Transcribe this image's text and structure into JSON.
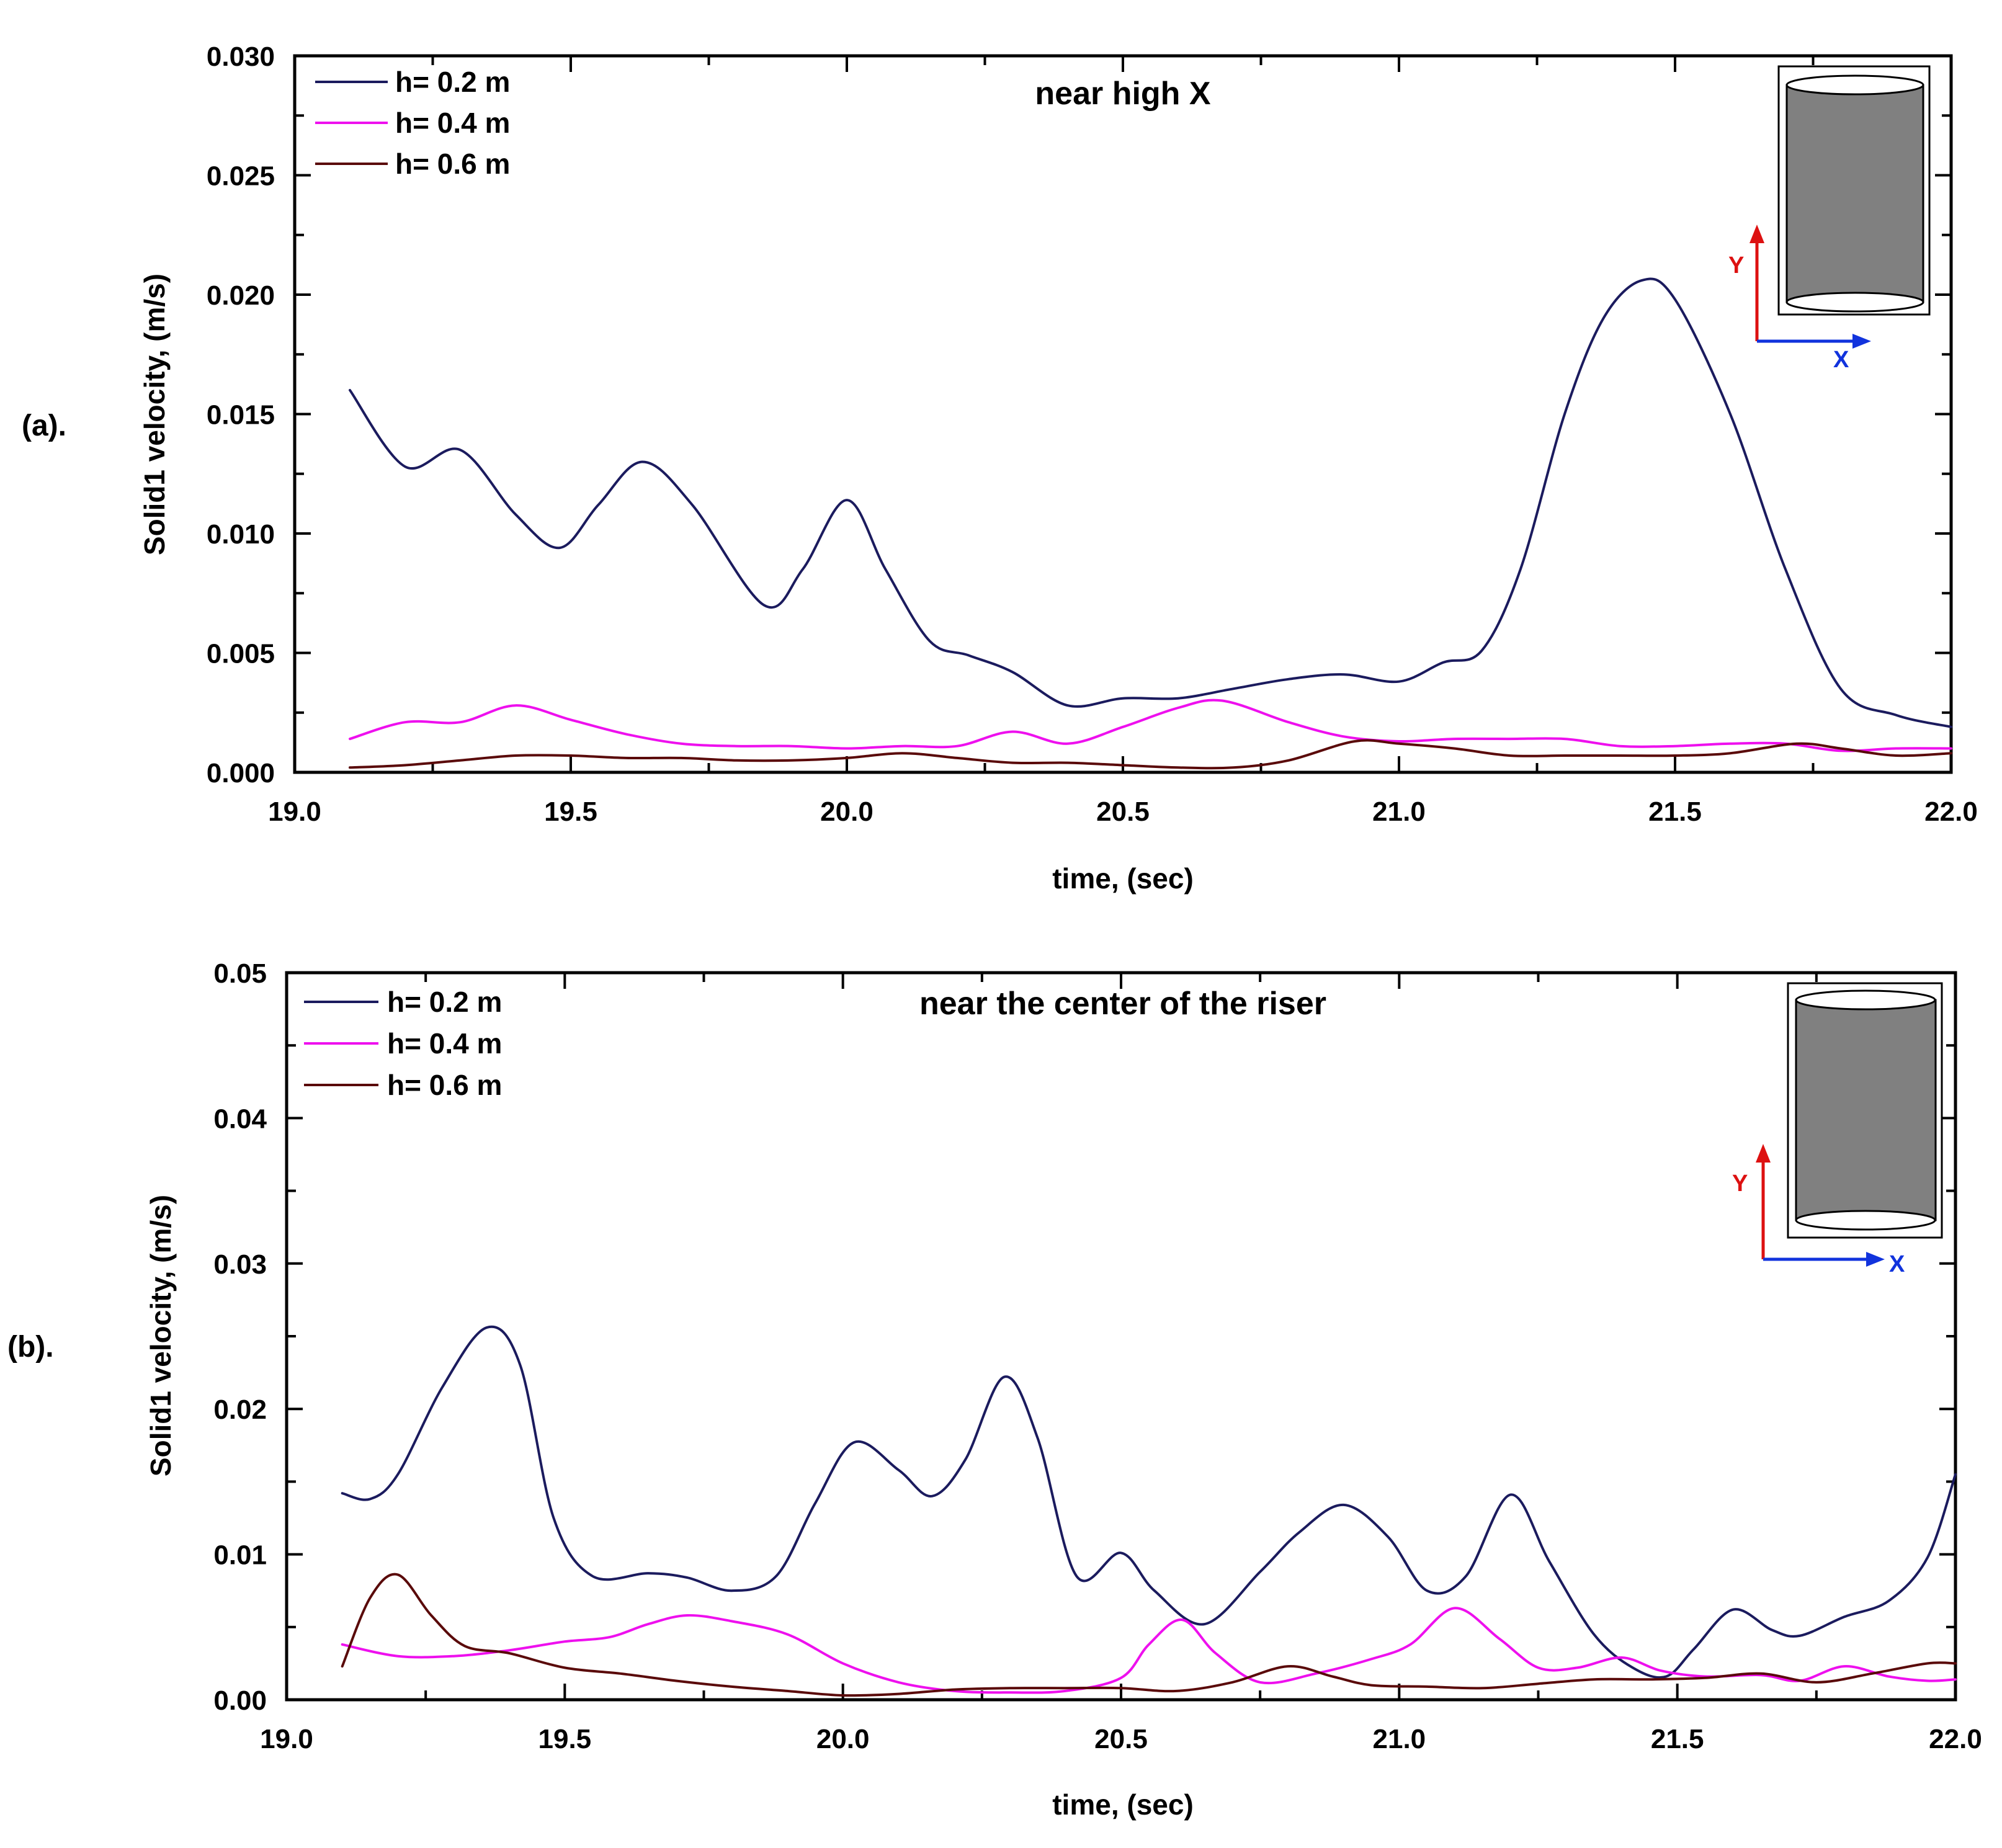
{
  "figure": {
    "colors": {
      "h02": "#1b1b5e",
      "h04": "#ee10ee",
      "h06": "#5a0a0a",
      "axis": "#000000",
      "inset_fill": "#808080",
      "inset_y_axis": "#dd1111",
      "inset_x_axis": "#1133dd"
    },
    "icons": [
      "cylinder-icon",
      "y-axis-arrow-icon",
      "x-axis-arrow-icon"
    ]
  },
  "chart_data": [
    {
      "type": "line",
      "panel_label": "(a).",
      "title": "near high X",
      "xlabel": "time, (sec)",
      "ylabel": "Solid1 velocity, (m/s)",
      "xlim": [
        19.0,
        22.0
      ],
      "ylim": [
        0.0,
        0.03
      ],
      "xticks": [
        19.0,
        19.5,
        20.0,
        20.5,
        21.0,
        21.5,
        22.0
      ],
      "xtick_labels": [
        "19.0",
        "19.5",
        "20.0",
        "20.5",
        "21.0",
        "21.5",
        "22.0"
      ],
      "yticks": [
        0.0,
        0.005,
        0.01,
        0.015,
        0.02,
        0.025,
        0.03
      ],
      "ytick_labels": [
        "0.000",
        "0.005",
        "0.010",
        "0.015",
        "0.020",
        "0.025",
        "0.030"
      ],
      "legend_position": "top-left",
      "inset": {
        "y_label": "Y",
        "x_label": "X"
      },
      "series": [
        {
          "name": "h= 0.2 m",
          "color": "#1b1b5e",
          "x": [
            19.1,
            19.2,
            19.3,
            19.4,
            19.48,
            19.55,
            19.63,
            19.72,
            19.85,
            19.92,
            20.0,
            20.07,
            20.15,
            20.22,
            20.3,
            20.4,
            20.5,
            20.6,
            20.7,
            20.8,
            20.9,
            21.0,
            21.08,
            21.15,
            21.22,
            21.3,
            21.37,
            21.44,
            21.5,
            21.6,
            21.7,
            21.8,
            21.9,
            22.0
          ],
          "values": [
            0.016,
            0.0128,
            0.0135,
            0.0108,
            0.0094,
            0.0112,
            0.013,
            0.0112,
            0.007,
            0.0085,
            0.0114,
            0.0085,
            0.0055,
            0.0049,
            0.0042,
            0.0028,
            0.0031,
            0.0031,
            0.0035,
            0.0039,
            0.0041,
            0.0038,
            0.0046,
            0.0051,
            0.0085,
            0.015,
            0.019,
            0.0206,
            0.0198,
            0.015,
            0.0085,
            0.0035,
            0.0024,
            0.0019
          ]
        },
        {
          "name": "h= 0.4 m",
          "color": "#ee10ee",
          "x": [
            19.1,
            19.2,
            19.3,
            19.4,
            19.5,
            19.6,
            19.7,
            19.8,
            19.9,
            20.0,
            20.1,
            20.2,
            20.3,
            20.4,
            20.5,
            20.6,
            20.68,
            20.8,
            20.9,
            21.0,
            21.1,
            21.2,
            21.3,
            21.4,
            21.5,
            21.6,
            21.7,
            21.8,
            21.9,
            22.0
          ],
          "values": [
            0.0014,
            0.0021,
            0.0021,
            0.0028,
            0.0022,
            0.0016,
            0.0012,
            0.0011,
            0.0011,
            0.001,
            0.0011,
            0.0011,
            0.0017,
            0.0012,
            0.0019,
            0.0027,
            0.003,
            0.0021,
            0.0015,
            0.0013,
            0.0014,
            0.0014,
            0.0014,
            0.0011,
            0.0011,
            0.0012,
            0.0012,
            0.0009,
            0.001,
            0.001
          ]
        },
        {
          "name": "h= 0.6 m",
          "color": "#5a0a0a",
          "x": [
            19.1,
            19.2,
            19.3,
            19.4,
            19.5,
            19.6,
            19.7,
            19.8,
            19.9,
            20.0,
            20.1,
            20.2,
            20.3,
            20.4,
            20.5,
            20.6,
            20.7,
            20.8,
            20.92,
            21.0,
            21.1,
            21.2,
            21.3,
            21.4,
            21.5,
            21.6,
            21.72,
            21.8,
            21.9,
            22.0
          ],
          "values": [
            0.0002,
            0.0003,
            0.0005,
            0.0007,
            0.0007,
            0.0006,
            0.0006,
            0.0005,
            0.0005,
            0.0006,
            0.0008,
            0.0006,
            0.0004,
            0.0004,
            0.0003,
            0.0002,
            0.0002,
            0.0005,
            0.0013,
            0.0012,
            0.001,
            0.0007,
            0.0007,
            0.0007,
            0.0007,
            0.0008,
            0.0012,
            0.001,
            0.0007,
            0.0008
          ]
        }
      ]
    },
    {
      "type": "line",
      "panel_label": "(b).",
      "title": "near the center of the riser",
      "xlabel": "time, (sec)",
      "ylabel": "Solid1 velocity, (m/s)",
      "xlim": [
        19.0,
        22.0
      ],
      "ylim": [
        0.0,
        0.05
      ],
      "xticks": [
        19.0,
        19.5,
        20.0,
        20.5,
        21.0,
        21.5,
        22.0
      ],
      "xtick_labels": [
        "19.0",
        "19.5",
        "20.0",
        "20.5",
        "21.0",
        "21.5",
        "22.0"
      ],
      "yticks": [
        0.0,
        0.01,
        0.02,
        0.03,
        0.04,
        0.05
      ],
      "ytick_labels": [
        "0.00",
        "0.01",
        "0.02",
        "0.03",
        "0.04",
        "0.05"
      ],
      "legend_position": "top-left",
      "inset": {
        "y_label": "Y",
        "x_label": "X"
      },
      "series": [
        {
          "name": "h= 0.2 m",
          "color": "#1b1b5e",
          "x": [
            19.1,
            19.15,
            19.2,
            19.28,
            19.36,
            19.42,
            19.48,
            19.55,
            19.65,
            19.72,
            19.8,
            19.88,
            19.95,
            20.02,
            20.1,
            20.16,
            20.22,
            20.29,
            20.35,
            20.42,
            20.5,
            20.56,
            20.65,
            20.75,
            20.82,
            20.9,
            20.98,
            21.05,
            21.12,
            21.2,
            21.27,
            21.35,
            21.42,
            21.48,
            21.53,
            21.6,
            21.67,
            21.72,
            21.8,
            21.88,
            21.95,
            22.0
          ],
          "values": [
            0.0142,
            0.0138,
            0.0155,
            0.0215,
            0.0256,
            0.023,
            0.0125,
            0.0085,
            0.0087,
            0.0084,
            0.0075,
            0.0085,
            0.0135,
            0.0177,
            0.0158,
            0.014,
            0.0165,
            0.0222,
            0.018,
            0.0085,
            0.0101,
            0.0075,
            0.0052,
            0.0088,
            0.0115,
            0.0134,
            0.0112,
            0.0075,
            0.0085,
            0.0141,
            0.0095,
            0.0045,
            0.0022,
            0.0016,
            0.0035,
            0.0062,
            0.0048,
            0.0044,
            0.0057,
            0.0068,
            0.0098,
            0.0155
          ]
        },
        {
          "name": "h= 0.4 m",
          "color": "#ee10ee",
          "x": [
            19.1,
            19.2,
            19.3,
            19.4,
            19.5,
            19.58,
            19.65,
            19.72,
            19.8,
            19.9,
            20.0,
            20.1,
            20.2,
            20.3,
            20.4,
            20.5,
            20.55,
            20.61,
            20.67,
            20.75,
            20.85,
            20.95,
            21.02,
            21.1,
            21.18,
            21.25,
            21.32,
            21.4,
            21.47,
            21.55,
            21.65,
            21.72,
            21.8,
            21.88,
            21.95,
            22.0
          ],
          "values": [
            0.0038,
            0.003,
            0.003,
            0.0034,
            0.004,
            0.0043,
            0.0052,
            0.0058,
            0.0054,
            0.0045,
            0.0025,
            0.0012,
            0.0006,
            0.0005,
            0.0006,
            0.0015,
            0.0038,
            0.0055,
            0.0032,
            0.0012,
            0.0018,
            0.0028,
            0.0038,
            0.0063,
            0.0042,
            0.0022,
            0.0022,
            0.0029,
            0.002,
            0.0016,
            0.0017,
            0.0013,
            0.0023,
            0.0016,
            0.0013,
            0.0014
          ]
        },
        {
          "name": "h= 0.6 m",
          "color": "#5a0a0a",
          "x": [
            19.1,
            19.15,
            19.2,
            19.26,
            19.32,
            19.4,
            19.5,
            19.6,
            19.7,
            19.8,
            19.9,
            20.0,
            20.1,
            20.2,
            20.3,
            20.4,
            20.5,
            20.6,
            20.7,
            20.8,
            20.88,
            20.95,
            21.05,
            21.15,
            21.25,
            21.35,
            21.45,
            21.55,
            21.65,
            21.75,
            21.85,
            21.95,
            22.0
          ],
          "values": [
            0.0023,
            0.007,
            0.0086,
            0.0058,
            0.0037,
            0.0032,
            0.0022,
            0.0018,
            0.0013,
            0.0009,
            0.0006,
            0.0003,
            0.0004,
            0.0007,
            0.0008,
            0.0008,
            0.0008,
            0.0006,
            0.0012,
            0.0023,
            0.0016,
            0.001,
            0.0009,
            0.0008,
            0.0011,
            0.0014,
            0.0014,
            0.0015,
            0.0018,
            0.0012,
            0.0018,
            0.0025,
            0.0025
          ]
        }
      ]
    }
  ]
}
